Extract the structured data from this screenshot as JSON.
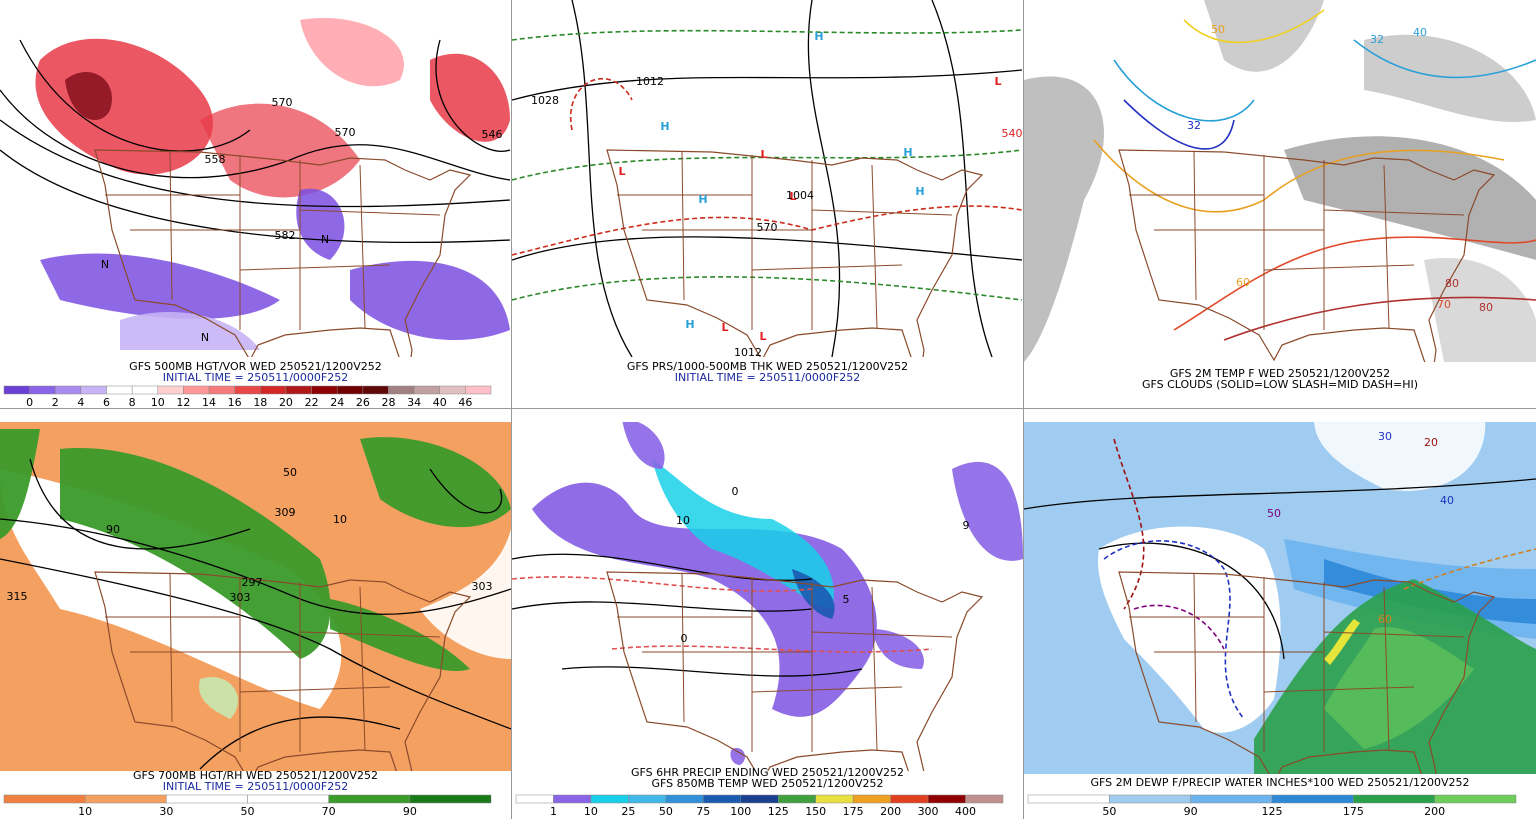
{
  "panels": [
    {
      "caption": [
        "GFS 500MB HGT/VOR WED 250521/1200V252",
        "INITIAL TIME = 250511/0000F252"
      ],
      "labels": [
        "570",
        "558",
        "570",
        "546",
        "582",
        "N",
        "N",
        "N"
      ],
      "colorbar": [
        0,
        2,
        4,
        6,
        8,
        10,
        12,
        14,
        16,
        18,
        20,
        22,
        24,
        26,
        28,
        34,
        40,
        46
      ]
    },
    {
      "caption": [
        "GFS PRS/1000-500MB THK WED 250521/1200V252",
        "INITIAL TIME = 250511/0000F252"
      ],
      "labels": [
        "H",
        "H",
        "H",
        "H",
        "H",
        "H",
        "L",
        "L",
        "L",
        "L",
        "L",
        "L",
        "1012",
        "1028",
        "570",
        "1004",
        "1012",
        "540"
      ],
      "colorbar": []
    },
    {
      "caption": [
        "GFS 2M TEMP F WED 250521/1200V252",
        "GFS CLOUDS (SOLID=LOW SLASH=MID DASH=HI)"
      ],
      "labels": [
        "32",
        "40",
        "50",
        "70",
        "80",
        "60",
        "32",
        "80"
      ],
      "colorbar": []
    },
    {
      "caption": [
        "GFS 700MB HGT/RH WED 250521/1200V252",
        "INITIAL TIME = 250511/0000F252"
      ],
      "labels": [
        "309",
        "303",
        "297",
        "315",
        "50",
        "90",
        "10",
        "303"
      ],
      "colorbar": [
        10,
        30,
        50,
        70,
        90
      ]
    },
    {
      "caption": [
        "GFS 6HR PRECIP ENDING WED 250521/1200V252",
        "GFS 850MB TEMP WED 250521/1200V252"
      ],
      "labels": [
        "0",
        "10",
        "9",
        "5",
        "0"
      ],
      "colorbar": [
        1,
        10,
        25,
        50,
        75,
        100,
        125,
        150,
        175,
        200,
        300,
        400
      ]
    },
    {
      "caption": [
        "GFS 2M DEWP F/PRECIP WATER INCHES*100 WED 250521/1200V252"
      ],
      "labels": [
        "30",
        "20",
        "40",
        "60",
        "50"
      ],
      "colorbar": [
        50,
        90,
        125,
        175,
        200
      ]
    }
  ]
}
